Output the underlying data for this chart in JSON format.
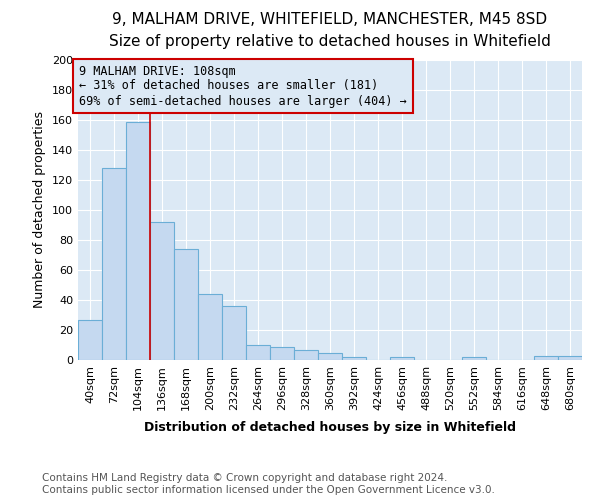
{
  "title": "9, MALHAM DRIVE, WHITEFIELD, MANCHESTER, M45 8SD",
  "subtitle": "Size of property relative to detached houses in Whitefield",
  "xlabel": "Distribution of detached houses by size in Whitefield",
  "ylabel": "Number of detached properties",
  "footer_line1": "Contains HM Land Registry data © Crown copyright and database right 2024.",
  "footer_line2": "Contains public sector information licensed under the Open Government Licence v3.0.",
  "bar_labels": [
    "40sqm",
    "72sqm",
    "104sqm",
    "136sqm",
    "168sqm",
    "200sqm",
    "232sqm",
    "264sqm",
    "296sqm",
    "328sqm",
    "360sqm",
    "392sqm",
    "424sqm",
    "456sqm",
    "488sqm",
    "520sqm",
    "552sqm",
    "584sqm",
    "616sqm",
    "648sqm",
    "680sqm"
  ],
  "bar_values": [
    27,
    128,
    159,
    92,
    74,
    44,
    36,
    10,
    9,
    7,
    5,
    2,
    0,
    2,
    0,
    0,
    2,
    0,
    0,
    3,
    3
  ],
  "bar_color": "#c5d9f0",
  "bar_edge_color": "#6baed6",
  "annotation_box_text": "9 MALHAM DRIVE: 108sqm\n← 31% of detached houses are smaller (181)\n69% of semi-detached houses are larger (404) →",
  "annotation_box_edge_color": "#cc0000",
  "annotation_box_text_color": "#000000",
  "vline_x": 2.5,
  "vline_color": "#cc0000",
  "ylim": [
    0,
    200
  ],
  "yticks": [
    0,
    20,
    40,
    60,
    80,
    100,
    120,
    140,
    160,
    180,
    200
  ],
  "plot_bg_color": "#dce9f5",
  "fig_bg_color": "#ffffff",
  "grid_color": "#ffffff",
  "title_fontsize": 11,
  "subtitle_fontsize": 10,
  "xlabel_fontsize": 9,
  "ylabel_fontsize": 9,
  "tick_fontsize": 8,
  "footer_fontsize": 7.5,
  "annotation_fontsize": 8.5
}
